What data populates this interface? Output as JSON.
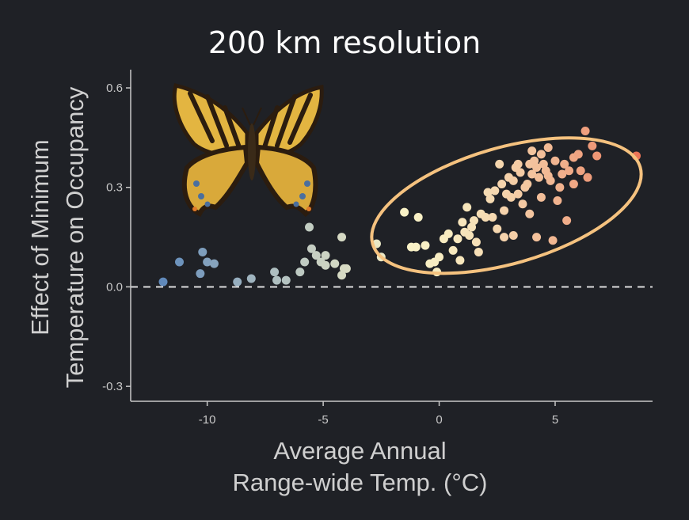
{
  "chart_data": {
    "type": "scatter",
    "title": "200 km resolution",
    "xlabel_lines": [
      "Average Annual",
      "Range-wide Temp. (°C)"
    ],
    "ylabel_lines": [
      "Effect of Minimum",
      "Temperature on Occupancy"
    ],
    "xlim": [
      -13.3,
      9.2
    ],
    "ylim": [
      -0.345,
      0.655
    ],
    "xticks": [
      -10,
      -5,
      0,
      5
    ],
    "xtick_labels": [
      "-10",
      "-5",
      "0",
      "5"
    ],
    "yticks": [
      -0.3,
      0.0,
      0.3,
      0.6
    ],
    "ytick_labels": [
      "-0.3",
      "0.0",
      "0.3",
      "0.6"
    ],
    "reference_line": {
      "y": 0.0,
      "style": "dashed",
      "color": "#dddddd"
    },
    "highlight_ellipse": {
      "cx": 2.9,
      "cy": 0.245,
      "rx": 6.0,
      "ry": 0.175,
      "color": "#f5c27f"
    },
    "color_scale": {
      "low": "#3f73b8",
      "mid": "#f8f1c6",
      "high": "#e8654a"
    },
    "points": [
      [
        -11.9,
        0.015
      ],
      [
        -11.2,
        0.075
      ],
      [
        -10.3,
        0.04
      ],
      [
        -10.2,
        0.105
      ],
      [
        -10.0,
        0.075
      ],
      [
        -9.7,
        0.07
      ],
      [
        -8.7,
        0.015
      ],
      [
        -8.1,
        0.025
      ],
      [
        -7.1,
        0.045
      ],
      [
        -7.0,
        0.02
      ],
      [
        -6.6,
        0.02
      ],
      [
        -6.0,
        0.045
      ],
      [
        -5.8,
        0.075
      ],
      [
        -5.6,
        0.18
      ],
      [
        -5.5,
        0.115
      ],
      [
        -5.3,
        0.095
      ],
      [
        -5.1,
        0.075
      ],
      [
        -4.9,
        0.095
      ],
      [
        -4.9,
        0.065
      ],
      [
        -4.5,
        0.07
      ],
      [
        -4.2,
        0.15
      ],
      [
        -4.1,
        0.055
      ],
      [
        -4.0,
        0.055
      ],
      [
        -4.2,
        0.035
      ],
      [
        -2.7,
        0.13
      ],
      [
        -2.5,
        0.09
      ],
      [
        -1.5,
        0.225
      ],
      [
        -1.2,
        0.12
      ],
      [
        -1.0,
        0.12
      ],
      [
        -0.9,
        0.21
      ],
      [
        -0.6,
        0.125
      ],
      [
        -0.4,
        0.07
      ],
      [
        -0.2,
        0.075
      ],
      [
        -0.1,
        0.045
      ],
      [
        0.0,
        0.09
      ],
      [
        0.2,
        0.145
      ],
      [
        0.4,
        0.16
      ],
      [
        0.6,
        0.11
      ],
      [
        0.8,
        0.145
      ],
      [
        0.9,
        0.08
      ],
      [
        1.0,
        0.195
      ],
      [
        1.1,
        0.165
      ],
      [
        1.2,
        0.24
      ],
      [
        1.3,
        0.155
      ],
      [
        1.4,
        0.18
      ],
      [
        1.5,
        0.2
      ],
      [
        1.6,
        0.135
      ],
      [
        1.7,
        0.105
      ],
      [
        1.8,
        0.22
      ],
      [
        2.0,
        0.21
      ],
      [
        2.1,
        0.285
      ],
      [
        2.2,
        0.265
      ],
      [
        2.3,
        0.21
      ],
      [
        2.4,
        0.29
      ],
      [
        2.5,
        0.175
      ],
      [
        2.6,
        0.37
      ],
      [
        2.7,
        0.31
      ],
      [
        2.8,
        0.23
      ],
      [
        2.8,
        0.15
      ],
      [
        2.9,
        0.28
      ],
      [
        3.0,
        0.33
      ],
      [
        3.1,
        0.27
      ],
      [
        3.2,
        0.32
      ],
      [
        3.2,
        0.155
      ],
      [
        3.3,
        0.36
      ],
      [
        3.4,
        0.37
      ],
      [
        3.4,
        0.28
      ],
      [
        3.5,
        0.345
      ],
      [
        3.6,
        0.25
      ],
      [
        3.7,
        0.3
      ],
      [
        3.8,
        0.31
      ],
      [
        3.9,
        0.37
      ],
      [
        3.9,
        0.22
      ],
      [
        4.0,
        0.41
      ],
      [
        4.0,
        0.34
      ],
      [
        4.1,
        0.38
      ],
      [
        4.2,
        0.36
      ],
      [
        4.2,
        0.15
      ],
      [
        4.3,
        0.33
      ],
      [
        4.4,
        0.4
      ],
      [
        4.4,
        0.27
      ],
      [
        4.5,
        0.37
      ],
      [
        4.6,
        0.35
      ],
      [
        4.7,
        0.42
      ],
      [
        4.7,
        0.335
      ],
      [
        4.8,
        0.32
      ],
      [
        4.9,
        0.14
      ],
      [
        5.0,
        0.38
      ],
      [
        5.1,
        0.26
      ],
      [
        5.2,
        0.3
      ],
      [
        5.3,
        0.34
      ],
      [
        5.4,
        0.37
      ],
      [
        5.5,
        0.2
      ],
      [
        5.6,
        0.35
      ],
      [
        5.8,
        0.39
      ],
      [
        5.8,
        0.31
      ],
      [
        6.0,
        0.4
      ],
      [
        6.1,
        0.35
      ],
      [
        6.3,
        0.47
      ],
      [
        6.4,
        0.33
      ],
      [
        6.6,
        0.425
      ],
      [
        6.8,
        0.395
      ],
      [
        8.5,
        0.395
      ]
    ]
  }
}
